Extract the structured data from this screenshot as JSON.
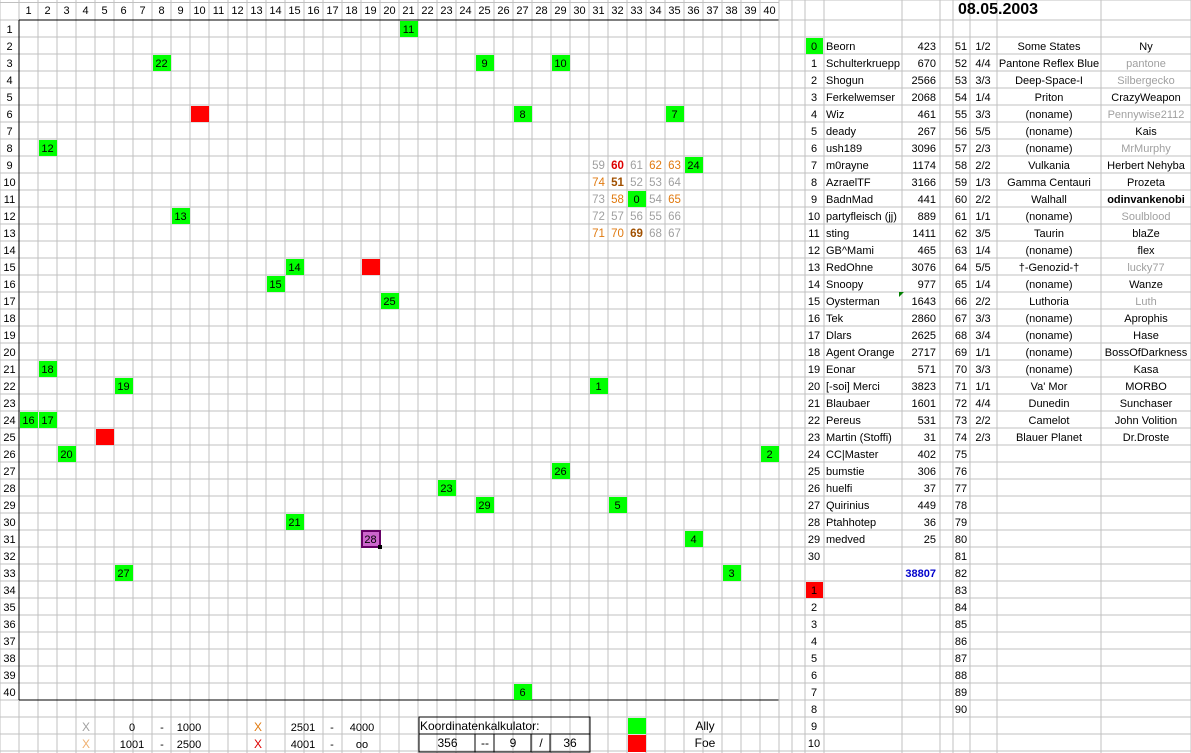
{
  "date": "08.05.2003",
  "columns": [
    "1",
    "2",
    "3",
    "4",
    "5",
    "6",
    "7",
    "8",
    "9",
    "10",
    "11",
    "12",
    "13",
    "14",
    "15",
    "16",
    "17",
    "18",
    "19",
    "20",
    "21",
    "22",
    "23",
    "24",
    "25",
    "26",
    "27",
    "28",
    "29",
    "30",
    "31",
    "32",
    "33",
    "34",
    "35",
    "36",
    "37",
    "38",
    "39",
    "40"
  ],
  "rows": [
    "1",
    "2",
    "3",
    "4",
    "5",
    "6",
    "7",
    "8",
    "9",
    "10",
    "11",
    "12",
    "13",
    "14",
    "15",
    "16",
    "17",
    "18",
    "19",
    "20",
    "21",
    "22",
    "23",
    "24",
    "25",
    "26",
    "27",
    "28",
    "29",
    "30",
    "31",
    "32",
    "33",
    "34",
    "35",
    "36",
    "37",
    "38",
    "39",
    "40"
  ],
  "colors": {
    "ally": "#00ff00",
    "foe": "#ff0000",
    "grid": "#c0c0c0",
    "selected": "#cc66cc",
    "sum": "#0000cc",
    "dim": "#a0a0a0",
    "orange": "#e07a10",
    "red": "#dd0000",
    "gold": "#a05000"
  },
  "allies_on_map": [
    {
      "label": "11",
      "col": 21,
      "row": 1
    },
    {
      "label": "22",
      "col": 8,
      "row": 3
    },
    {
      "label": "9",
      "col": 25,
      "row": 3
    },
    {
      "label": "10",
      "col": 29,
      "row": 3
    },
    {
      "label": "8",
      "col": 27,
      "row": 6
    },
    {
      "label": "7",
      "col": 35,
      "row": 6
    },
    {
      "label": "12",
      "col": 2,
      "row": 8
    },
    {
      "label": "24",
      "col": 36,
      "row": 9
    },
    {
      "label": "0",
      "col": 33,
      "row": 11
    },
    {
      "label": "13",
      "col": 9,
      "row": 12
    },
    {
      "label": "14",
      "col": 15,
      "row": 15
    },
    {
      "label": "15",
      "col": 14,
      "row": 16
    },
    {
      "label": "25",
      "col": 20,
      "row": 17
    },
    {
      "label": "18",
      "col": 2,
      "row": 21
    },
    {
      "label": "19",
      "col": 6,
      "row": 22
    },
    {
      "label": "1",
      "col": 31,
      "row": 22
    },
    {
      "label": "16",
      "col": 1,
      "row": 24
    },
    {
      "label": "17",
      "col": 2,
      "row": 24
    },
    {
      "label": "20",
      "col": 3,
      "row": 26
    },
    {
      "label": "2",
      "col": 40,
      "row": 26
    },
    {
      "label": "26",
      "col": 29,
      "row": 27
    },
    {
      "label": "23",
      "col": 23,
      "row": 28
    },
    {
      "label": "29",
      "col": 25,
      "row": 29
    },
    {
      "label": "5",
      "col": 32,
      "row": 29
    },
    {
      "label": "21",
      "col": 15,
      "row": 30
    },
    {
      "label": "4",
      "col": 36,
      "row": 31
    },
    {
      "label": "27",
      "col": 6,
      "row": 33
    },
    {
      "label": "3",
      "col": 38,
      "row": 33
    },
    {
      "label": "6",
      "col": 27,
      "row": 40
    }
  ],
  "selected_cell": {
    "label": "28",
    "col": 19,
    "row": 31
  },
  "foes_on_map": [
    {
      "col": 10,
      "row": 6
    },
    {
      "col": 19,
      "row": 15
    },
    {
      "col": 5,
      "row": 25
    }
  ],
  "distance_cells": [
    {
      "v": "59",
      "col": 31,
      "row": 9,
      "tone": "dim"
    },
    {
      "v": "60",
      "col": 32,
      "row": 9,
      "tone": "red"
    },
    {
      "v": "61",
      "col": 33,
      "row": 9,
      "tone": "dim"
    },
    {
      "v": "62",
      "col": 34,
      "row": 9,
      "tone": "orange"
    },
    {
      "v": "63",
      "col": 35,
      "row": 9,
      "tone": "orange"
    },
    {
      "v": "74",
      "col": 31,
      "row": 10,
      "tone": "orange"
    },
    {
      "v": "51",
      "col": 32,
      "row": 10,
      "tone": "gold"
    },
    {
      "v": "52",
      "col": 33,
      "row": 10,
      "tone": "dim"
    },
    {
      "v": "53",
      "col": 34,
      "row": 10,
      "tone": "dim"
    },
    {
      "v": "64",
      "col": 35,
      "row": 10,
      "tone": "dim"
    },
    {
      "v": "73",
      "col": 31,
      "row": 11,
      "tone": "dim"
    },
    {
      "v": "58",
      "col": 32,
      "row": 11,
      "tone": "orange"
    },
    {
      "v": "54",
      "col": 34,
      "row": 11,
      "tone": "dim"
    },
    {
      "v": "65",
      "col": 35,
      "row": 11,
      "tone": "orange"
    },
    {
      "v": "72",
      "col": 31,
      "row": 12,
      "tone": "dim"
    },
    {
      "v": "57",
      "col": 32,
      "row": 12,
      "tone": "dim"
    },
    {
      "v": "56",
      "col": 33,
      "row": 12,
      "tone": "dim"
    },
    {
      "v": "55",
      "col": 34,
      "row": 12,
      "tone": "dim"
    },
    {
      "v": "66",
      "col": 35,
      "row": 12,
      "tone": "dim"
    },
    {
      "v": "71",
      "col": 31,
      "row": 13,
      "tone": "orange"
    },
    {
      "v": "70",
      "col": 32,
      "row": 13,
      "tone": "orange"
    },
    {
      "v": "69",
      "col": 33,
      "row": 13,
      "tone": "gold"
    },
    {
      "v": "68",
      "col": 34,
      "row": 13,
      "tone": "dim"
    },
    {
      "v": "67",
      "col": 35,
      "row": 13,
      "tone": "dim"
    }
  ],
  "players": [
    {
      "id": "0",
      "name": "Beorn",
      "score": "423"
    },
    {
      "id": "1",
      "name": "Schulterkruepp",
      "score": "670"
    },
    {
      "id": "2",
      "name": "Shogun",
      "score": "2566"
    },
    {
      "id": "3",
      "name": "Ferkelwemser",
      "score": "2068"
    },
    {
      "id": "4",
      "name": "Wiz",
      "score": "461"
    },
    {
      "id": "5",
      "name": "deady",
      "score": "267"
    },
    {
      "id": "6",
      "name": "ush189",
      "score": "3096"
    },
    {
      "id": "7",
      "name": "m0rayne",
      "score": "1174"
    },
    {
      "id": "8",
      "name": "AzraelTF",
      "score": "3166"
    },
    {
      "id": "9",
      "name": "BadnMad",
      "score": "441"
    },
    {
      "id": "10",
      "name": "partyfleisch (jj)",
      "score": "889"
    },
    {
      "id": "11",
      "name": "sting",
      "score": "1411"
    },
    {
      "id": "12",
      "name": "GB^Mami",
      "score": "465"
    },
    {
      "id": "13",
      "name": "RedOhne",
      "score": "3076"
    },
    {
      "id": "14",
      "name": "Snoopy",
      "score": "977"
    },
    {
      "id": "15",
      "name": "Oysterman",
      "score": "1643"
    },
    {
      "id": "16",
      "name": "Tek",
      "score": "2860"
    },
    {
      "id": "17",
      "name": "Dlars",
      "score": "2625"
    },
    {
      "id": "18",
      "name": "Agent Orange",
      "score": "2717"
    },
    {
      "id": "19",
      "name": "Eonar",
      "score": "571"
    },
    {
      "id": "20",
      "name": "[-soi] Merci",
      "score": "3823"
    },
    {
      "id": "21",
      "name": "Blaubaer",
      "score": "1601"
    },
    {
      "id": "22",
      "name": "Pereus",
      "score": "531"
    },
    {
      "id": "23",
      "name": "Martin (Stoffi)",
      "score": "31"
    },
    {
      "id": "24",
      "name": "CC|Master",
      "score": "402"
    },
    {
      "id": "25",
      "name": "bumstie",
      "score": "306"
    },
    {
      "id": "26",
      "name": "huelfi",
      "score": "37"
    },
    {
      "id": "27",
      "name": "Quirinius",
      "score": "449"
    },
    {
      "id": "28",
      "name": "Ptahhotep",
      "score": "36"
    },
    {
      "id": "29",
      "name": "medved",
      "score": "25"
    },
    {
      "id": "30",
      "name": "",
      "score": ""
    }
  ],
  "player_total": "38807",
  "foe_ids": [
    "1",
    "2",
    "3",
    "4",
    "5",
    "6",
    "7",
    "8",
    "9",
    "10"
  ],
  "planets": [
    {
      "n": "51",
      "ratio": "1/2",
      "system": "Some States",
      "owner": "Ny",
      "tone": "normal"
    },
    {
      "n": "52",
      "ratio": "4/4",
      "system": "Pantone Reflex Blue",
      "owner": "pantone",
      "tone": "dim"
    },
    {
      "n": "53",
      "ratio": "3/3",
      "system": "Deep-Space-I",
      "owner": "Silbergecko",
      "tone": "dim"
    },
    {
      "n": "54",
      "ratio": "1/4",
      "system": "Priton",
      "owner": "CrazyWeapon",
      "tone": "normal"
    },
    {
      "n": "55",
      "ratio": "3/3",
      "system": "(noname)",
      "owner": "Pennywise2112",
      "tone": "dim"
    },
    {
      "n": "56",
      "ratio": "5/5",
      "system": "(noname)",
      "owner": "Kais",
      "tone": "normal"
    },
    {
      "n": "57",
      "ratio": "2/3",
      "system": "(noname)",
      "owner": "MrMurphy",
      "tone": "dim"
    },
    {
      "n": "58",
      "ratio": "2/2",
      "system": "Vulkania",
      "owner": "Herbert Nehyba",
      "tone": "normal"
    },
    {
      "n": "59",
      "ratio": "1/3",
      "system": "Gamma Centauri",
      "owner": "Prozeta",
      "tone": "normal"
    },
    {
      "n": "60",
      "ratio": "2/2",
      "system": "Walhall",
      "owner": "odinvankenobi",
      "tone": "bold"
    },
    {
      "n": "61",
      "ratio": "1/1",
      "system": "(noname)",
      "owner": "Soulblood",
      "tone": "dim"
    },
    {
      "n": "62",
      "ratio": "3/5",
      "system": "Taurin",
      "owner": "blaZe",
      "tone": "normal"
    },
    {
      "n": "63",
      "ratio": "1/4",
      "system": "(noname)",
      "owner": "flex",
      "tone": "normal"
    },
    {
      "n": "64",
      "ratio": "5/5",
      "system": "†-Genozid-†",
      "owner": "lucky77",
      "tone": "dim"
    },
    {
      "n": "65",
      "ratio": "1/4",
      "system": "(noname)",
      "owner": "Wanze",
      "tone": "normal"
    },
    {
      "n": "66",
      "ratio": "2/2",
      "system": "Luthoria",
      "owner": "Luth",
      "tone": "dim"
    },
    {
      "n": "67",
      "ratio": "3/3",
      "system": "(noname)",
      "owner": "Aprophis",
      "tone": "normal"
    },
    {
      "n": "68",
      "ratio": "3/4",
      "system": "(noname)",
      "owner": "Hase",
      "tone": "normal"
    },
    {
      "n": "69",
      "ratio": "1/1",
      "system": "(noname)",
      "owner": "BossOfDarkness",
      "tone": "normal"
    },
    {
      "n": "70",
      "ratio": "3/3",
      "system": "(noname)",
      "owner": "Kasa",
      "tone": "normal"
    },
    {
      "n": "71",
      "ratio": "1/1",
      "system": "Va' Mor",
      "owner": "MORBO",
      "tone": "normal"
    },
    {
      "n": "72",
      "ratio": "4/4",
      "system": "Dunedin",
      "owner": "Sunchaser",
      "tone": "normal"
    },
    {
      "n": "73",
      "ratio": "2/2",
      "system": "Camelot",
      "owner": "John Volition",
      "tone": "normal"
    },
    {
      "n": "74",
      "ratio": "2/3",
      "system": "Blauer Planet",
      "owner": "Dr.Droste",
      "tone": "normal"
    },
    {
      "n": "75"
    },
    {
      "n": "76"
    },
    {
      "n": "77"
    },
    {
      "n": "78"
    },
    {
      "n": "79"
    },
    {
      "n": "80"
    },
    {
      "n": "81"
    },
    {
      "n": "82"
    },
    {
      "n": "83"
    },
    {
      "n": "84"
    },
    {
      "n": "85"
    },
    {
      "n": "86"
    },
    {
      "n": "87"
    },
    {
      "n": "88"
    },
    {
      "n": "89"
    },
    {
      "n": "90"
    }
  ],
  "legend_ranges": [
    {
      "mark": "X",
      "tone": "dim",
      "from": "0",
      "dash": "-",
      "to": "1000"
    },
    {
      "mark": "X",
      "tone": "dim-orange",
      "from": "1001",
      "dash": "-",
      "to": "2500"
    },
    {
      "mark": "X",
      "tone": "orange",
      "from": "2501",
      "dash": "-",
      "to": "4000"
    },
    {
      "mark": "X",
      "tone": "red",
      "from": "4001",
      "dash": "-",
      "to": "oo"
    }
  ],
  "calculator": {
    "title": "Koordinatenkalkulator:",
    "value": "356",
    "sep1": "--",
    "a": "9",
    "sep2": "/",
    "b": "36"
  },
  "legend": {
    "ally": "Ally",
    "foe": "Foe"
  }
}
